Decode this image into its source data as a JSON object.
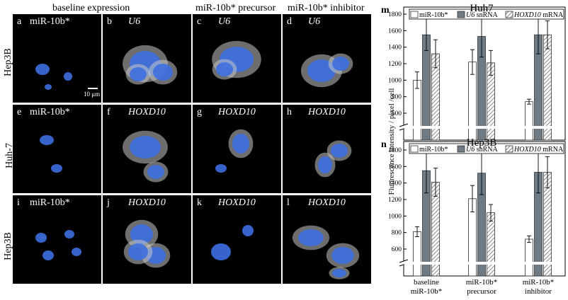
{
  "columns": [
    "baseline expression",
    "miR-10b* precursor",
    "miR-10b* inhibitor"
  ],
  "rows": [
    "Hep3B",
    "Huh-7",
    "Hep3B"
  ],
  "scale_bar": "10 μm",
  "panels": [
    {
      "letter": "a",
      "gene": "miR-10b*"
    },
    {
      "letter": "b",
      "gene": "U6"
    },
    {
      "letter": "c",
      "gene": "U6"
    },
    {
      "letter": "d",
      "gene": "U6"
    },
    {
      "letter": "e",
      "gene": "miR-10b*"
    },
    {
      "letter": "f",
      "gene": "HOXD10"
    },
    {
      "letter": "g",
      "gene": "HOXD10"
    },
    {
      "letter": "h",
      "gene": "HOXD10"
    },
    {
      "letter": "i",
      "gene": "miR-10b*"
    },
    {
      "letter": "j",
      "gene": "HOXD10"
    },
    {
      "letter": "k",
      "gene": "HOXD10"
    },
    {
      "letter": "l",
      "gene": "HOXD10"
    }
  ],
  "chart_data": [
    {
      "type": "bar",
      "panel": "m",
      "title": "Huh7",
      "ylabel": "Fluorescence intensity / pixel /cell",
      "ylim": [
        0,
        1800
      ],
      "yticks": [
        600,
        800,
        1000,
        1200,
        1400,
        1600,
        1800
      ],
      "categories": [
        "baseline miR-10b*",
        "miR-10b* precursor",
        "miR-10b* inhibitor"
      ],
      "series": [
        {
          "name": "miR-10b*",
          "values": [
            1000,
            1220,
            740
          ],
          "errors": [
            100,
            150,
            30
          ]
        },
        {
          "name": "U6 snRNA",
          "values": [
            1550,
            1530,
            1550
          ],
          "errors": [
            190,
            250,
            230
          ]
        },
        {
          "name": "HOXD10 mRNA",
          "values": [
            1320,
            1210,
            1550
          ],
          "errors": [
            170,
            150,
            170
          ]
        }
      ]
    },
    {
      "type": "bar",
      "panel": "n",
      "title": "Hep3B",
      "ylabel": "Fluorescence intensity / pixel /cell",
      "ylim": [
        0,
        1800
      ],
      "yticks": [
        600,
        800,
        1000,
        1200,
        1400,
        1600,
        1800
      ],
      "categories": [
        "baseline miR-10b*",
        "miR-10b* precursor",
        "miR-10b* inhibitor"
      ],
      "series": [
        {
          "name": "miR-10b*",
          "values": [
            810,
            1210,
            720
          ],
          "errors": [
            60,
            160,
            40
          ]
        },
        {
          "name": "U6 snRNA",
          "values": [
            1550,
            1520,
            1530
          ],
          "errors": [
            270,
            260,
            250
          ]
        },
        {
          "name": "HOXD10 mRNA",
          "values": [
            1410,
            1040,
            1530
          ],
          "errors": [
            170,
            100,
            190
          ]
        }
      ]
    }
  ],
  "x_labels": [
    [
      "baseline",
      "miR-10b*"
    ],
    [
      "miR-10b*",
      "precursor"
    ],
    [
      "miR-10b*",
      "inhibitor"
    ]
  ],
  "legend_labels": [
    "miR-10b*",
    "U6",
    "snRNA",
    "HOXD10",
    "mRNA"
  ],
  "colors": {
    "bar_white": "#ffffff",
    "bar_grey": "#6e7b85",
    "cell_blue": "#3d6fe0",
    "cell_halo": "#c8c8c8"
  }
}
